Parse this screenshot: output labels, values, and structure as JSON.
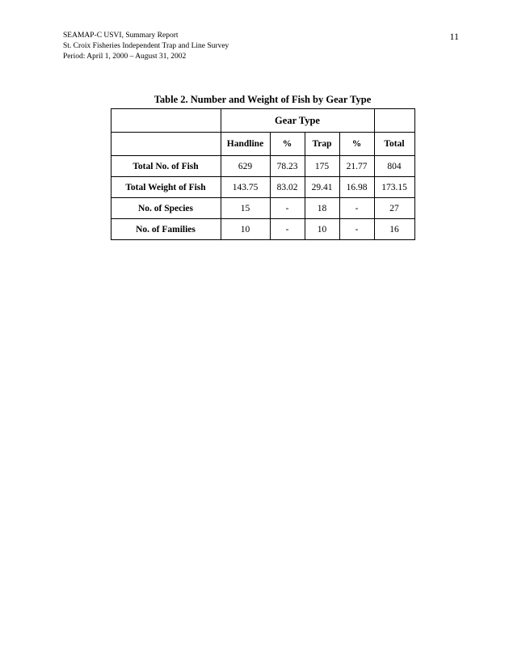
{
  "header": {
    "title": "SEAMAP-C USVI, Summary Report",
    "subtitle": "St. Croix Fisheries Independent Trap and Line Survey",
    "period": "Period: April 1, 2000 – August 31, 2002",
    "page_number": "11"
  },
  "table": {
    "caption": "Table 2.  Number and Weight of Fish by Gear Type",
    "gear_type_label": "Gear Type",
    "columns": {
      "handline": "Handline",
      "pct1": "%",
      "trap": "Trap",
      "pct2": "%",
      "total": "Total"
    },
    "rows": [
      {
        "label": "Total No. of Fish",
        "handline": "629",
        "pct1": "78.23",
        "trap": "175",
        "pct2": "21.77",
        "total": "804"
      },
      {
        "label": "Total Weight of Fish",
        "handline": "143.75",
        "pct1": "83.02",
        "trap": "29.41",
        "pct2": "16.98",
        "total": "173.15"
      },
      {
        "label": "No. of Species",
        "handline": "15",
        "pct1": "-",
        "trap": "18",
        "pct2": "-",
        "total": "27"
      },
      {
        "label": "No. of Families",
        "handline": "10",
        "pct1": "-",
        "trap": "10",
        "pct2": "-",
        "total": "16"
      }
    ]
  }
}
